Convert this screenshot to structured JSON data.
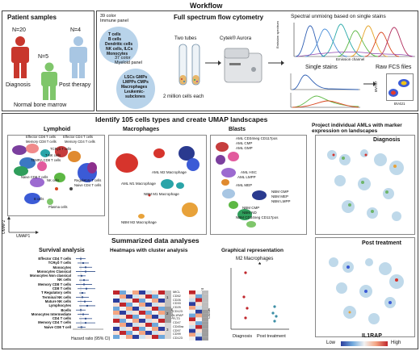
{
  "workflow_title": "Workflow",
  "patient": {
    "title": "Patient samples",
    "n_diag": "N=20",
    "n_post": "N=4",
    "n_nbm": "N=5",
    "diag": "Diagnosis",
    "post": "Post therapy",
    "nbm": "Normal bone marrow"
  },
  "flow": {
    "title": "Full spectrum flow cytometry",
    "immune_title": "39 color\nImmune panel",
    "immune_items": [
      "T cells",
      "B cells",
      "Dendritic cells",
      "NK cells, ILCs",
      "Monocytes"
    ],
    "myeloid_title": "37 color\nMyeloid panel",
    "myeloid_items": [
      "LSCs GMPs",
      "LMPPs CMPs",
      "Macrophages",
      "Leukemic-",
      "subclones"
    ],
    "tubes": "Two tubes",
    "cells": "2 million cells each",
    "instrument": "Cytek® Aurora",
    "unmix_title": "Spectral unmixing based on single stains",
    "emission_y": "Emission spectrum",
    "emission_x": "Emission channel",
    "single_stains": "Single stains",
    "raw_files": "Raw FCS files",
    "bv737": "BV737",
    "bv421": "BV421"
  },
  "identify_title": "Identify 105 cells types and create UMAP landscapes",
  "lymphoid": {
    "title": "Lymphoid",
    "labels": [
      "Effector CD8 T cells",
      "Memory CD8 T cells",
      "TCRγδ T cells",
      "T-NK cells",
      "TEMRA CD8 T cells",
      "Effector CD4 T cells",
      "Memory CD4 T cells",
      "Naive CD8 T cells",
      "NK cells",
      "Regulatory T cells",
      "Naive CD4 T cells",
      "B cells",
      "Plasma cells"
    ],
    "umap1": "UMAP1",
    "umap2": "UMAP2"
  },
  "macro": {
    "title": "Macrophages",
    "labels": [
      "AML M1 Macrophage",
      "AML M2 Macrophage",
      "NBM M1 Macrophage",
      "NBM M2 Macrophage"
    ]
  },
  "blasts": {
    "title": "Blasts",
    "labels": [
      "AML CD34neg CD117pos",
      "AML CMP",
      "AML GMP",
      "AML HSC",
      "AML LMPP",
      "AML MEP",
      "NBM GMP",
      "NBM MEP",
      "NBM LMPP",
      "NBM CMP",
      "NBM ND",
      "NBM CD34neg CD117pos"
    ]
  },
  "project": {
    "title": "Project individual AMLs with marker\nexpression on landscapes",
    "diagnosis": "Diagnosis",
    "post": "Post treatment",
    "marker": "IL1RAP",
    "low": "Low",
    "high": "High"
  },
  "summ_title": "Summarized data analyses",
  "survival": {
    "title": "Survival analysis",
    "xlabel": "Hazard ratio (95% CI)",
    "ticks": [
      "1",
      "2",
      "3",
      "4"
    ],
    "rows": [
      "Effector CD4 T cells",
      "TCRγδ T cells",
      "Monocytes",
      "Monocytes Classical",
      "Monocytes Non classical",
      "NK cells",
      "Memory CD8 T cells",
      "CD8 T cells",
      "T Regulatory cells",
      "Terminal NK cells",
      "Mature NK cells",
      "Lymphocytes",
      "Bcells",
      "Monocytes Intermediate",
      "CD4 T cells",
      "Memory CD4 T cells",
      "Naive CD8 T cell"
    ]
  },
  "heatmap": {
    "title": "Heatmaps with cluster analysis",
    "cols1": [
      "Blasts",
      "Dendritic cells",
      "NK cells",
      "T cells",
      "Monocytes",
      "TCRγδ T cells",
      "B cells",
      "Macrophages",
      "Cluster"
    ],
    "cols2": [
      "AML diagnosis",
      "AML Post treatment",
      "Cluster"
    ],
    "rows2": [
      "MICL",
      "CD52",
      "CD26",
      "CD33",
      "CD25",
      "CD123",
      "IL1RAP",
      "FLT3",
      "CD47",
      "CD45ra",
      "CD97",
      "CD99",
      "CD123"
    ],
    "cluster_labels": [
      "1",
      "2",
      "3"
    ]
  },
  "graph": {
    "title": "Graphical representation",
    "subtitle": "M2 Macrophages",
    "star": "*",
    "xlabels": [
      "Diagnosis",
      "Post treatment"
    ]
  }
}
